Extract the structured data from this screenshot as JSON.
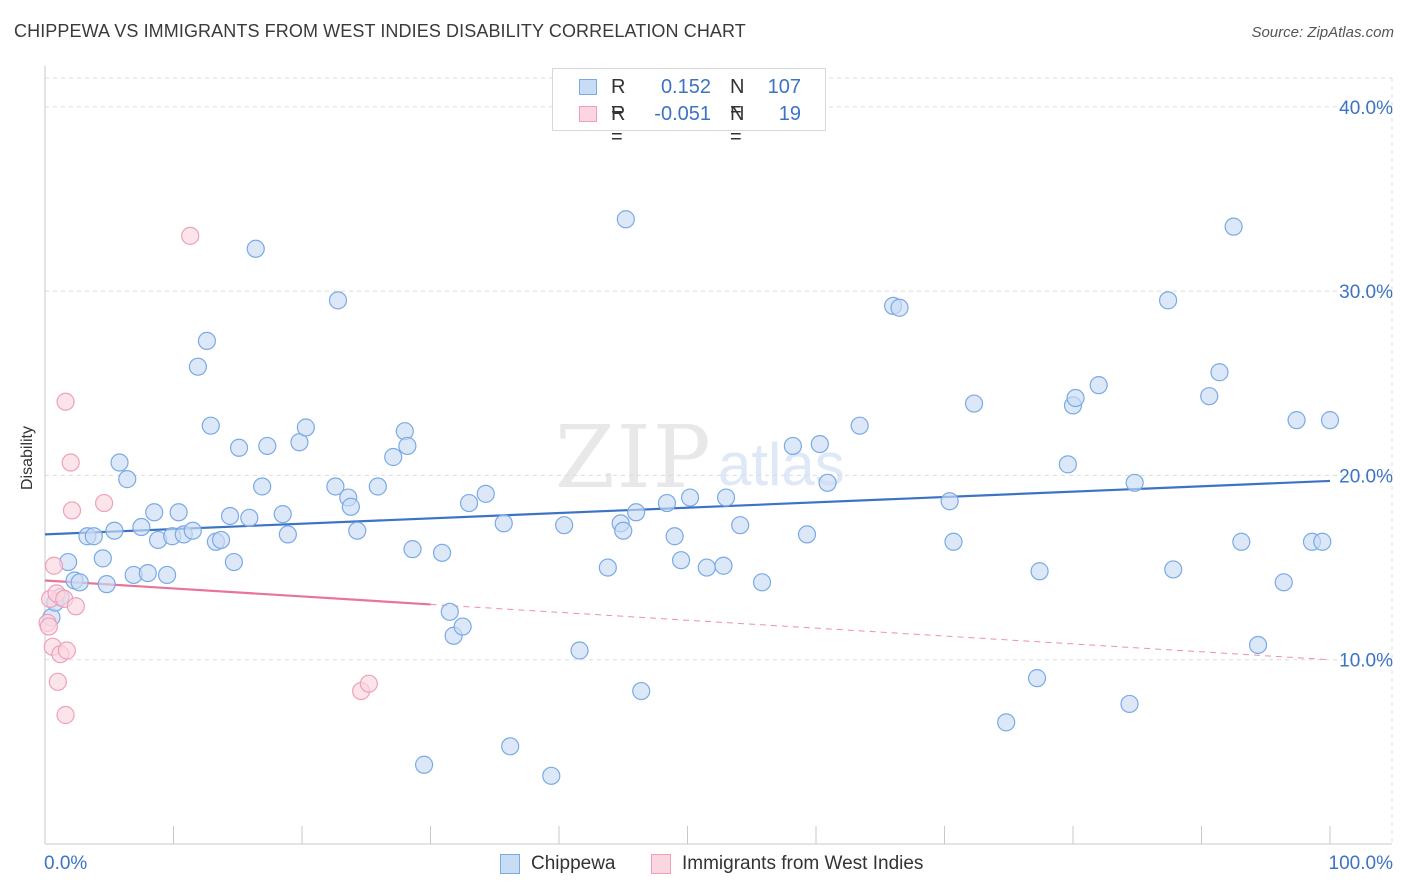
{
  "title": "CHIPPEWA VS IMMIGRANTS FROM WEST INDIES DISABILITY CORRELATION CHART",
  "source": "Source: ZipAtlas.com",
  "watermark": {
    "main": "ZIP",
    "sub": "atlas"
  },
  "legend_top": {
    "rows": [
      {
        "r_label": "R =",
        "r_value": "0.152",
        "n_label": "N =",
        "n_value": "107",
        "color": "#7aaae6",
        "fill": "#c9dcf5"
      },
      {
        "r_label": "R =",
        "r_value": "-0.051",
        "n_label": "N =",
        "n_value": "19",
        "color": "#f0a0b8",
        "fill": "#fbd5e0"
      }
    ]
  },
  "legend_bottom": [
    {
      "label": "Chippewa",
      "color": "#7aaae6",
      "fill": "#c9dcf5"
    },
    {
      "label": "Immigrants from West Indies",
      "color": "#f0a0b8",
      "fill": "#fbd5e0"
    }
  ],
  "chart_data": {
    "type": "scatter",
    "title": "CHIPPEWA VS IMMIGRANTS FROM WEST INDIES DISABILITY CORRELATION CHART",
    "xlabel": "",
    "ylabel": "Disability",
    "xlim": [
      0,
      100
    ],
    "ylim": [
      0,
      42
    ],
    "x_tick_labels": [
      "0.0%",
      "100.0%"
    ],
    "y_ticks": [
      10,
      20,
      30,
      40
    ],
    "y_tick_labels": [
      "10.0%",
      "20.0%",
      "30.0%",
      "40.0%"
    ],
    "grid": true,
    "series": [
      {
        "name": "Chippewa",
        "color": "#3d73c4",
        "marker_fill": "#c9dcf5",
        "marker_stroke": "#7aaae6",
        "trend": {
          "x": [
            0,
            100
          ],
          "y": [
            16.8,
            19.7
          ],
          "style": "solid"
        },
        "points": [
          [
            0.5,
            12.3
          ],
          [
            0.8,
            13.1
          ],
          [
            1.2,
            13.4
          ],
          [
            1.8,
            15.3
          ],
          [
            2.3,
            14.3
          ],
          [
            2.7,
            14.2
          ],
          [
            3.3,
            16.7
          ],
          [
            3.8,
            16.7
          ],
          [
            4.5,
            15.5
          ],
          [
            4.8,
            14.1
          ],
          [
            5.4,
            17.0
          ],
          [
            5.8,
            20.7
          ],
          [
            6.4,
            19.8
          ],
          [
            6.9,
            14.6
          ],
          [
            7.5,
            17.2
          ],
          [
            8.0,
            14.7
          ],
          [
            8.5,
            18.0
          ],
          [
            8.8,
            16.5
          ],
          [
            9.5,
            14.6
          ],
          [
            9.9,
            16.7
          ],
          [
            10.4,
            18.0
          ],
          [
            10.8,
            16.8
          ],
          [
            11.5,
            17.0
          ],
          [
            11.9,
            25.9
          ],
          [
            12.6,
            27.3
          ],
          [
            12.9,
            22.7
          ],
          [
            13.3,
            16.4
          ],
          [
            13.7,
            16.5
          ],
          [
            14.4,
            17.8
          ],
          [
            14.7,
            15.3
          ],
          [
            15.1,
            21.5
          ],
          [
            15.9,
            17.7
          ],
          [
            16.4,
            32.3
          ],
          [
            16.9,
            19.4
          ],
          [
            17.3,
            21.6
          ],
          [
            18.5,
            17.9
          ],
          [
            18.9,
            16.8
          ],
          [
            19.8,
            21.8
          ],
          [
            20.3,
            22.6
          ],
          [
            22.6,
            19.4
          ],
          [
            22.8,
            29.5
          ],
          [
            23.6,
            18.8
          ],
          [
            23.8,
            18.3
          ],
          [
            24.3,
            17.0
          ],
          [
            25.9,
            19.4
          ],
          [
            27.1,
            21.0
          ],
          [
            28.0,
            22.4
          ],
          [
            28.2,
            21.6
          ],
          [
            28.6,
            16.0
          ],
          [
            29.5,
            4.3
          ],
          [
            30.9,
            15.8
          ],
          [
            31.5,
            12.6
          ],
          [
            31.8,
            11.3
          ],
          [
            32.5,
            11.8
          ],
          [
            33.0,
            18.5
          ],
          [
            34.3,
            19.0
          ],
          [
            35.7,
            17.4
          ],
          [
            36.2,
            5.3
          ],
          [
            39.4,
            3.7
          ],
          [
            40.4,
            17.3
          ],
          [
            41.6,
            10.5
          ],
          [
            43.8,
            15.0
          ],
          [
            44.8,
            17.4
          ],
          [
            45.0,
            17.0
          ],
          [
            45.2,
            33.9
          ],
          [
            46.0,
            18.0
          ],
          [
            46.4,
            8.3
          ],
          [
            48.4,
            18.5
          ],
          [
            49.0,
            16.7
          ],
          [
            49.5,
            15.4
          ],
          [
            50.2,
            18.8
          ],
          [
            51.5,
            15.0
          ],
          [
            52.8,
            15.1
          ],
          [
            53.0,
            18.8
          ],
          [
            54.1,
            17.3
          ],
          [
            55.8,
            14.2
          ],
          [
            58.2,
            21.6
          ],
          [
            59.3,
            16.8
          ],
          [
            60.3,
            21.7
          ],
          [
            60.9,
            19.6
          ],
          [
            63.4,
            22.7
          ],
          [
            66.0,
            29.2
          ],
          [
            66.5,
            29.1
          ],
          [
            70.4,
            18.6
          ],
          [
            70.7,
            16.4
          ],
          [
            72.3,
            23.9
          ],
          [
            74.8,
            6.6
          ],
          [
            77.2,
            9.0
          ],
          [
            77.4,
            14.8
          ],
          [
            79.6,
            20.6
          ],
          [
            80.0,
            23.8
          ],
          [
            80.2,
            24.2
          ],
          [
            82.0,
            24.9
          ],
          [
            84.4,
            7.6
          ],
          [
            84.8,
            19.6
          ],
          [
            87.4,
            29.5
          ],
          [
            87.8,
            14.9
          ],
          [
            90.6,
            24.3
          ],
          [
            91.4,
            25.6
          ],
          [
            92.5,
            33.5
          ],
          [
            93.1,
            16.4
          ],
          [
            94.4,
            10.8
          ],
          [
            96.4,
            14.2
          ],
          [
            97.4,
            23.0
          ],
          [
            98.6,
            16.4
          ],
          [
            99.4,
            16.4
          ],
          [
            100.0,
            23.0
          ]
        ]
      },
      {
        "name": "Immigrants from West Indies",
        "color": "#e8749a",
        "marker_fill": "#fbd5e0",
        "marker_stroke": "#f0a0b8",
        "trend": {
          "x": [
            0,
            30
          ],
          "y": [
            14.3,
            13.0
          ],
          "style": "solid",
          "extension": {
            "x": [
              30,
              100
            ],
            "y": [
              13.0,
              10.0
            ],
            "style": "dashed"
          }
        },
        "points": [
          [
            0.2,
            12.0
          ],
          [
            0.4,
            13.3
          ],
          [
            0.6,
            10.7
          ],
          [
            0.7,
            15.1
          ],
          [
            0.9,
            13.6
          ],
          [
            1.0,
            8.8
          ],
          [
            1.2,
            10.3
          ],
          [
            1.5,
            13.3
          ],
          [
            1.6,
            7.0
          ],
          [
            1.7,
            10.5
          ],
          [
            1.6,
            24.0
          ],
          [
            2.0,
            20.7
          ],
          [
            2.1,
            18.1
          ],
          [
            2.4,
            12.9
          ],
          [
            4.6,
            18.5
          ],
          [
            11.3,
            33.0
          ],
          [
            24.6,
            8.3
          ],
          [
            25.2,
            8.7
          ],
          [
            0.3,
            11.8
          ]
        ]
      }
    ]
  }
}
